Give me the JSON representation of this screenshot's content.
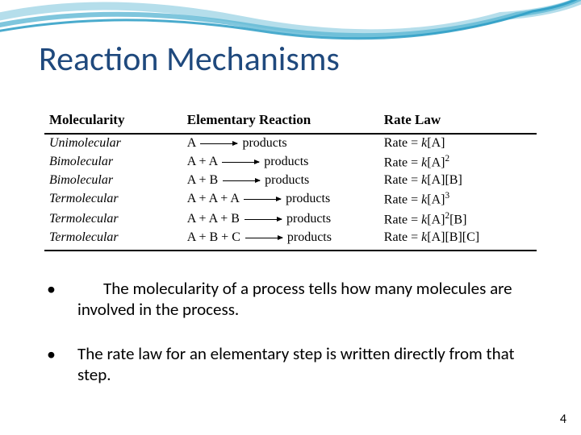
{
  "title": "Reaction Mechanisms",
  "title_color": "#1f497d",
  "wave_colors": {
    "light": "#a8d8e8",
    "mid": "#5fb8d4",
    "dark": "#2a9cc4"
  },
  "table": {
    "headers": [
      "Molecularity",
      "Elementary Reaction",
      "Rate Law"
    ],
    "rows": [
      {
        "mol": "Unimolecular",
        "lhs": "A",
        "rhs": "products",
        "rate": "Rate = k[A]"
      },
      {
        "mol": "Bimolecular",
        "lhs": "A + A",
        "rhs": "products",
        "rate": "Rate = k[A]²"
      },
      {
        "mol": "Bimolecular",
        "lhs": "A + B",
        "rhs": "products",
        "rate": "Rate = k[A][B]"
      },
      {
        "mol": "Termolecular",
        "lhs": "A + A + A",
        "rhs": "products",
        "rate": "Rate = k[A]³"
      },
      {
        "mol": "Termolecular",
        "lhs": "A + A + B",
        "rhs": "products",
        "rate": "Rate = k[A]²[B]"
      },
      {
        "mol": "Termolecular",
        "lhs": "A + B + C",
        "rhs": "products",
        "rate": "Rate = k[A][B][C]"
      }
    ]
  },
  "bullets": [
    "The molecularity of a process tells how many molecules are involved in the process.",
    "The rate law for an elementary step is written directly from that step."
  ],
  "page_number": "4"
}
